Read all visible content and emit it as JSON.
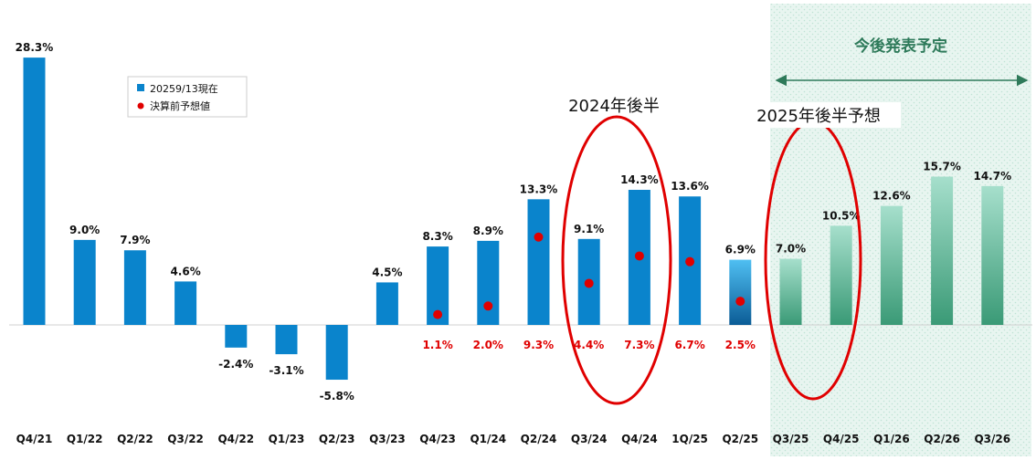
{
  "chart_data": {
    "type": "bar",
    "categories": [
      "Q4/21",
      "Q1/22",
      "Q2/22",
      "Q3/22",
      "Q4/22",
      "Q1/23",
      "Q2/23",
      "Q3/23",
      "Q4/23",
      "Q1/24",
      "Q2/24",
      "Q3/24",
      "Q4/24",
      "1Q/25",
      "Q2/25",
      "Q3/25",
      "Q4/25",
      "Q1/26",
      "Q2/26",
      "Q3/26"
    ],
    "series": [
      {
        "name": "20259/13現在",
        "values": [
          28.3,
          9.0,
          7.9,
          4.6,
          -2.4,
          -3.1,
          -5.8,
          4.5,
          8.3,
          8.9,
          13.3,
          9.1,
          14.3,
          13.6,
          6.9,
          7.0,
          10.5,
          12.6,
          15.7,
          14.7
        ],
        "labels": [
          "28.3%",
          "9.0%",
          "7.9%",
          "4.6%",
          "-2.4%",
          "-3.1%",
          "-5.8%",
          "4.5%",
          "8.3%",
          "8.9%",
          "13.3%",
          "9.1%",
          "14.3%",
          "13.6%",
          "6.9%",
          "7.0%",
          "10.5%",
          "12.6%",
          "15.7%",
          "14.7%"
        ]
      },
      {
        "name": "決算前予想値",
        "values": [
          null,
          null,
          null,
          null,
          null,
          null,
          null,
          null,
          1.1,
          2.0,
          9.3,
          4.4,
          7.3,
          6.7,
          2.5,
          null,
          null,
          null,
          null,
          null
        ],
        "labels": [
          null,
          null,
          null,
          null,
          null,
          null,
          null,
          null,
          "1.1%",
          "2.0%",
          "9.3%",
          "4.4%",
          "7.3%",
          "6.7%",
          "2.5%",
          null,
          null,
          null,
          null,
          null
        ]
      }
    ],
    "ylim": [
      -8.5,
      30
    ],
    "grid": false,
    "legend_position": "top-left",
    "future_region_title": "今後発表予定",
    "annotations": [
      "2024年後半",
      "2025年後半予想"
    ],
    "colors": {
      "actual_bar": "#0a84cc",
      "estimate_dot": "#e00000",
      "future_bar_top": "#a6dfcc",
      "future_bar_bottom": "#3a9a76",
      "future_region": "#e6f4ef",
      "future_title": "#2e7a5a",
      "ellipse": "#e00000"
    }
  }
}
